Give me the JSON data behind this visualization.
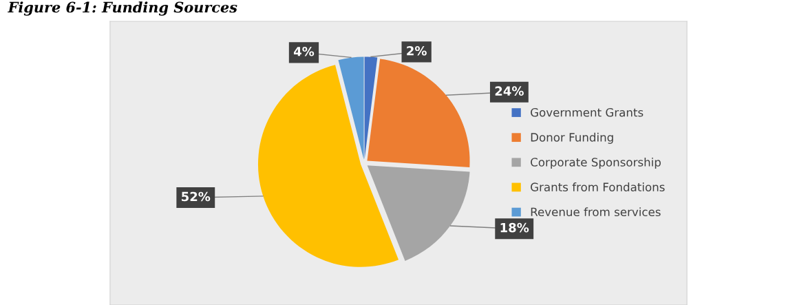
{
  "chart_data": {
    "type": "pie",
    "title": "Figure 6-1: Funding Sources",
    "categories": [
      "Government Grants",
      "Donor Funding",
      "Corporate Sponsorship",
      "Grants from Fondations",
      "Revenue from services"
    ],
    "values": [
      2,
      24,
      18,
      52,
      4
    ],
    "colors": [
      "#4472c4",
      "#ed7d31",
      "#a5a5a5",
      "#ffc000",
      "#5b9bd5"
    ],
    "value_labels": [
      "2%",
      "24%",
      "18%",
      "52%",
      "4%"
    ],
    "legend": "right"
  }
}
